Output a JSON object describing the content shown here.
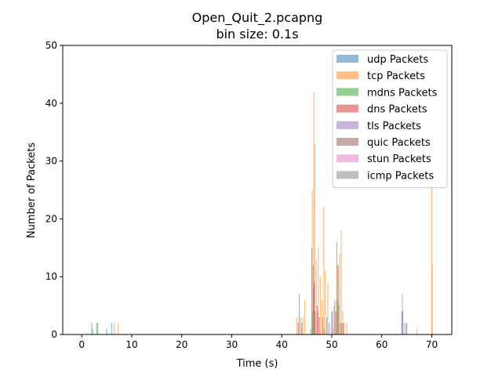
{
  "chart_data": {
    "type": "bar",
    "title": "Open_Quit_2.pcapng",
    "subtitle": "bin size: 0.1s",
    "xlabel": "Time (s)",
    "ylabel": "Number of Packets",
    "xlim": [
      -3.8,
      74
    ],
    "ylim": [
      0,
      50
    ],
    "xticks": [
      0,
      10,
      20,
      30,
      40,
      50,
      60,
      70
    ],
    "yticks": [
      0,
      10,
      20,
      30,
      40,
      50
    ],
    "legend_position": "top-right",
    "bin_size": 0.1,
    "series": [
      {
        "name": "udp Packets",
        "color": "#1f77b4",
        "alpha": 0.5,
        "points": [
          [
            2.0,
            2
          ],
          [
            3.0,
            2
          ],
          [
            5.0,
            1
          ],
          [
            6.0,
            2
          ],
          [
            43.5,
            7
          ],
          [
            46.0,
            15
          ],
          [
            46.3,
            12
          ],
          [
            49.0,
            3
          ],
          [
            50.0,
            4
          ],
          [
            51.0,
            16
          ],
          [
            51.3,
            12
          ],
          [
            64.0,
            4
          ],
          [
            65.0,
            2
          ]
        ]
      },
      {
        "name": "tcp Packets",
        "color": "#ff7f0e",
        "alpha": 0.5,
        "points": [
          [
            6.5,
            2
          ],
          [
            7.3,
            2
          ],
          [
            43.0,
            3
          ],
          [
            43.8,
            3
          ],
          [
            44.2,
            3
          ],
          [
            44.6,
            6
          ],
          [
            46.1,
            25
          ],
          [
            46.4,
            42
          ],
          [
            46.6,
            33
          ],
          [
            46.9,
            13
          ],
          [
            47.3,
            15
          ],
          [
            47.7,
            10
          ],
          [
            48.0,
            6
          ],
          [
            48.4,
            22
          ],
          [
            48.7,
            11
          ],
          [
            49.2,
            9
          ],
          [
            50.4,
            5
          ],
          [
            51.2,
            12
          ],
          [
            51.6,
            14
          ],
          [
            51.9,
            18
          ],
          [
            52.2,
            4
          ],
          [
            52.5,
            2
          ],
          [
            53.0,
            2
          ],
          [
            64.5,
            2
          ],
          [
            67.0,
            1
          ],
          [
            70.0,
            27
          ],
          [
            70.1,
            12
          ]
        ]
      },
      {
        "name": "mdns Packets",
        "color": "#2ca02c",
        "alpha": 0.5,
        "points": [
          [
            2.2,
            1
          ],
          [
            3.2,
            2
          ],
          [
            46.2,
            4
          ],
          [
            51.1,
            6
          ]
        ]
      },
      {
        "name": "dns Packets",
        "color": "#d62728",
        "alpha": 0.5,
        "points": [
          [
            43.3,
            2
          ],
          [
            46.5,
            9
          ],
          [
            47.1,
            5
          ],
          [
            47.5,
            3
          ],
          [
            49.5,
            2
          ],
          [
            50.8,
            4
          ],
          [
            52.0,
            2
          ]
        ]
      },
      {
        "name": "tls Packets",
        "color": "#9467bd",
        "alpha": 0.5,
        "points": [
          [
            46.35,
            8
          ],
          [
            47.2,
            4
          ],
          [
            50.1,
            4
          ],
          [
            51.4,
            5
          ],
          [
            64.1,
            7
          ],
          [
            64.8,
            2
          ]
        ]
      },
      {
        "name": "quic Packets",
        "color": "#8c564b",
        "alpha": 0.5,
        "points": [
          [
            44.0,
            2
          ],
          [
            46.7,
            4
          ],
          [
            48.2,
            3
          ],
          [
            50.6,
            6
          ],
          [
            52.3,
            2
          ],
          [
            64.2,
            4
          ]
        ]
      },
      {
        "name": "stun Packets",
        "color": "#e377c2",
        "alpha": 0.5,
        "points": [
          [
            46.45,
            2
          ],
          [
            50.3,
            1
          ]
        ]
      },
      {
        "name": "icmp Packets",
        "color": "#7f7f7f",
        "alpha": 0.5,
        "points": [
          [
            45.8,
            1
          ],
          [
            48.5,
            1
          ],
          [
            51.7,
            2
          ]
        ]
      }
    ]
  }
}
